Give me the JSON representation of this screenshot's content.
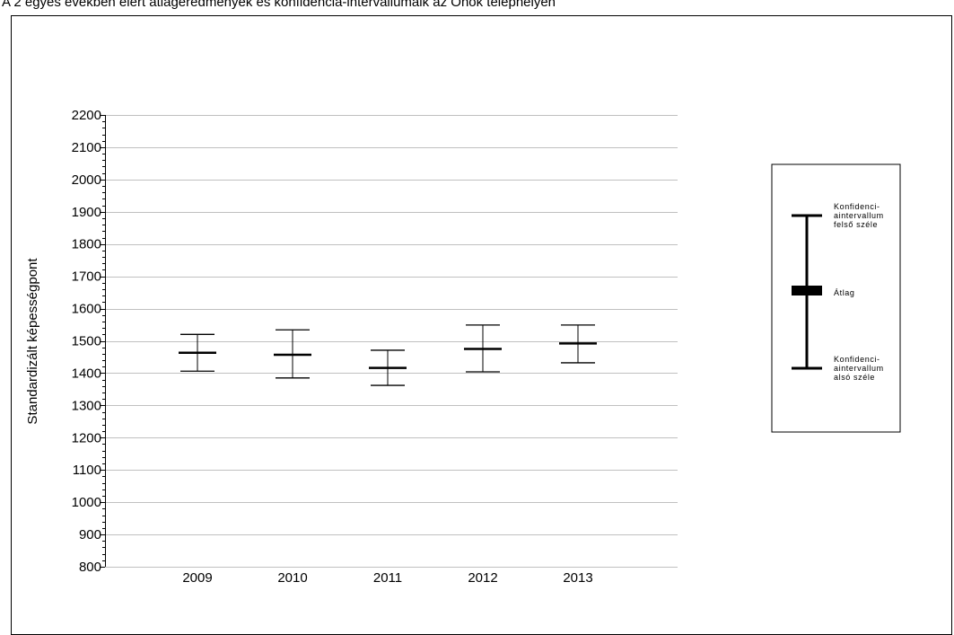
{
  "caption": "A 2 egyes években elért átlageredmények és konfidencia-intervallumaik az Önök telephelyén",
  "chart_data": {
    "type": "errorbar",
    "ylabel": "Standardizált képességpont",
    "ylim": [
      800,
      2200
    ],
    "yticks": [
      800,
      900,
      1000,
      1100,
      1200,
      1300,
      1400,
      1500,
      1600,
      1700,
      1800,
      1900,
      2000,
      2100,
      2200
    ],
    "grid": true,
    "categories": [
      "2009",
      "2010",
      "2011",
      "2012",
      "2013"
    ],
    "mean": [
      1463,
      1457,
      1416,
      1475,
      1492
    ],
    "ci_upper": [
      1520,
      1534,
      1471,
      1549,
      1549
    ],
    "ci_lower": [
      1406,
      1385,
      1362,
      1404,
      1432
    ]
  },
  "legend": {
    "upper_label": [
      "Konfidenci-",
      "aintervallum",
      "felső széle"
    ],
    "mean_label": "Átlag",
    "lower_label": [
      "Konfidenci-",
      "aintervallum",
      "alsó széle"
    ]
  },
  "colors": {
    "grid": "#c0c0c0",
    "axis": "#000000",
    "marks": "#000000"
  }
}
